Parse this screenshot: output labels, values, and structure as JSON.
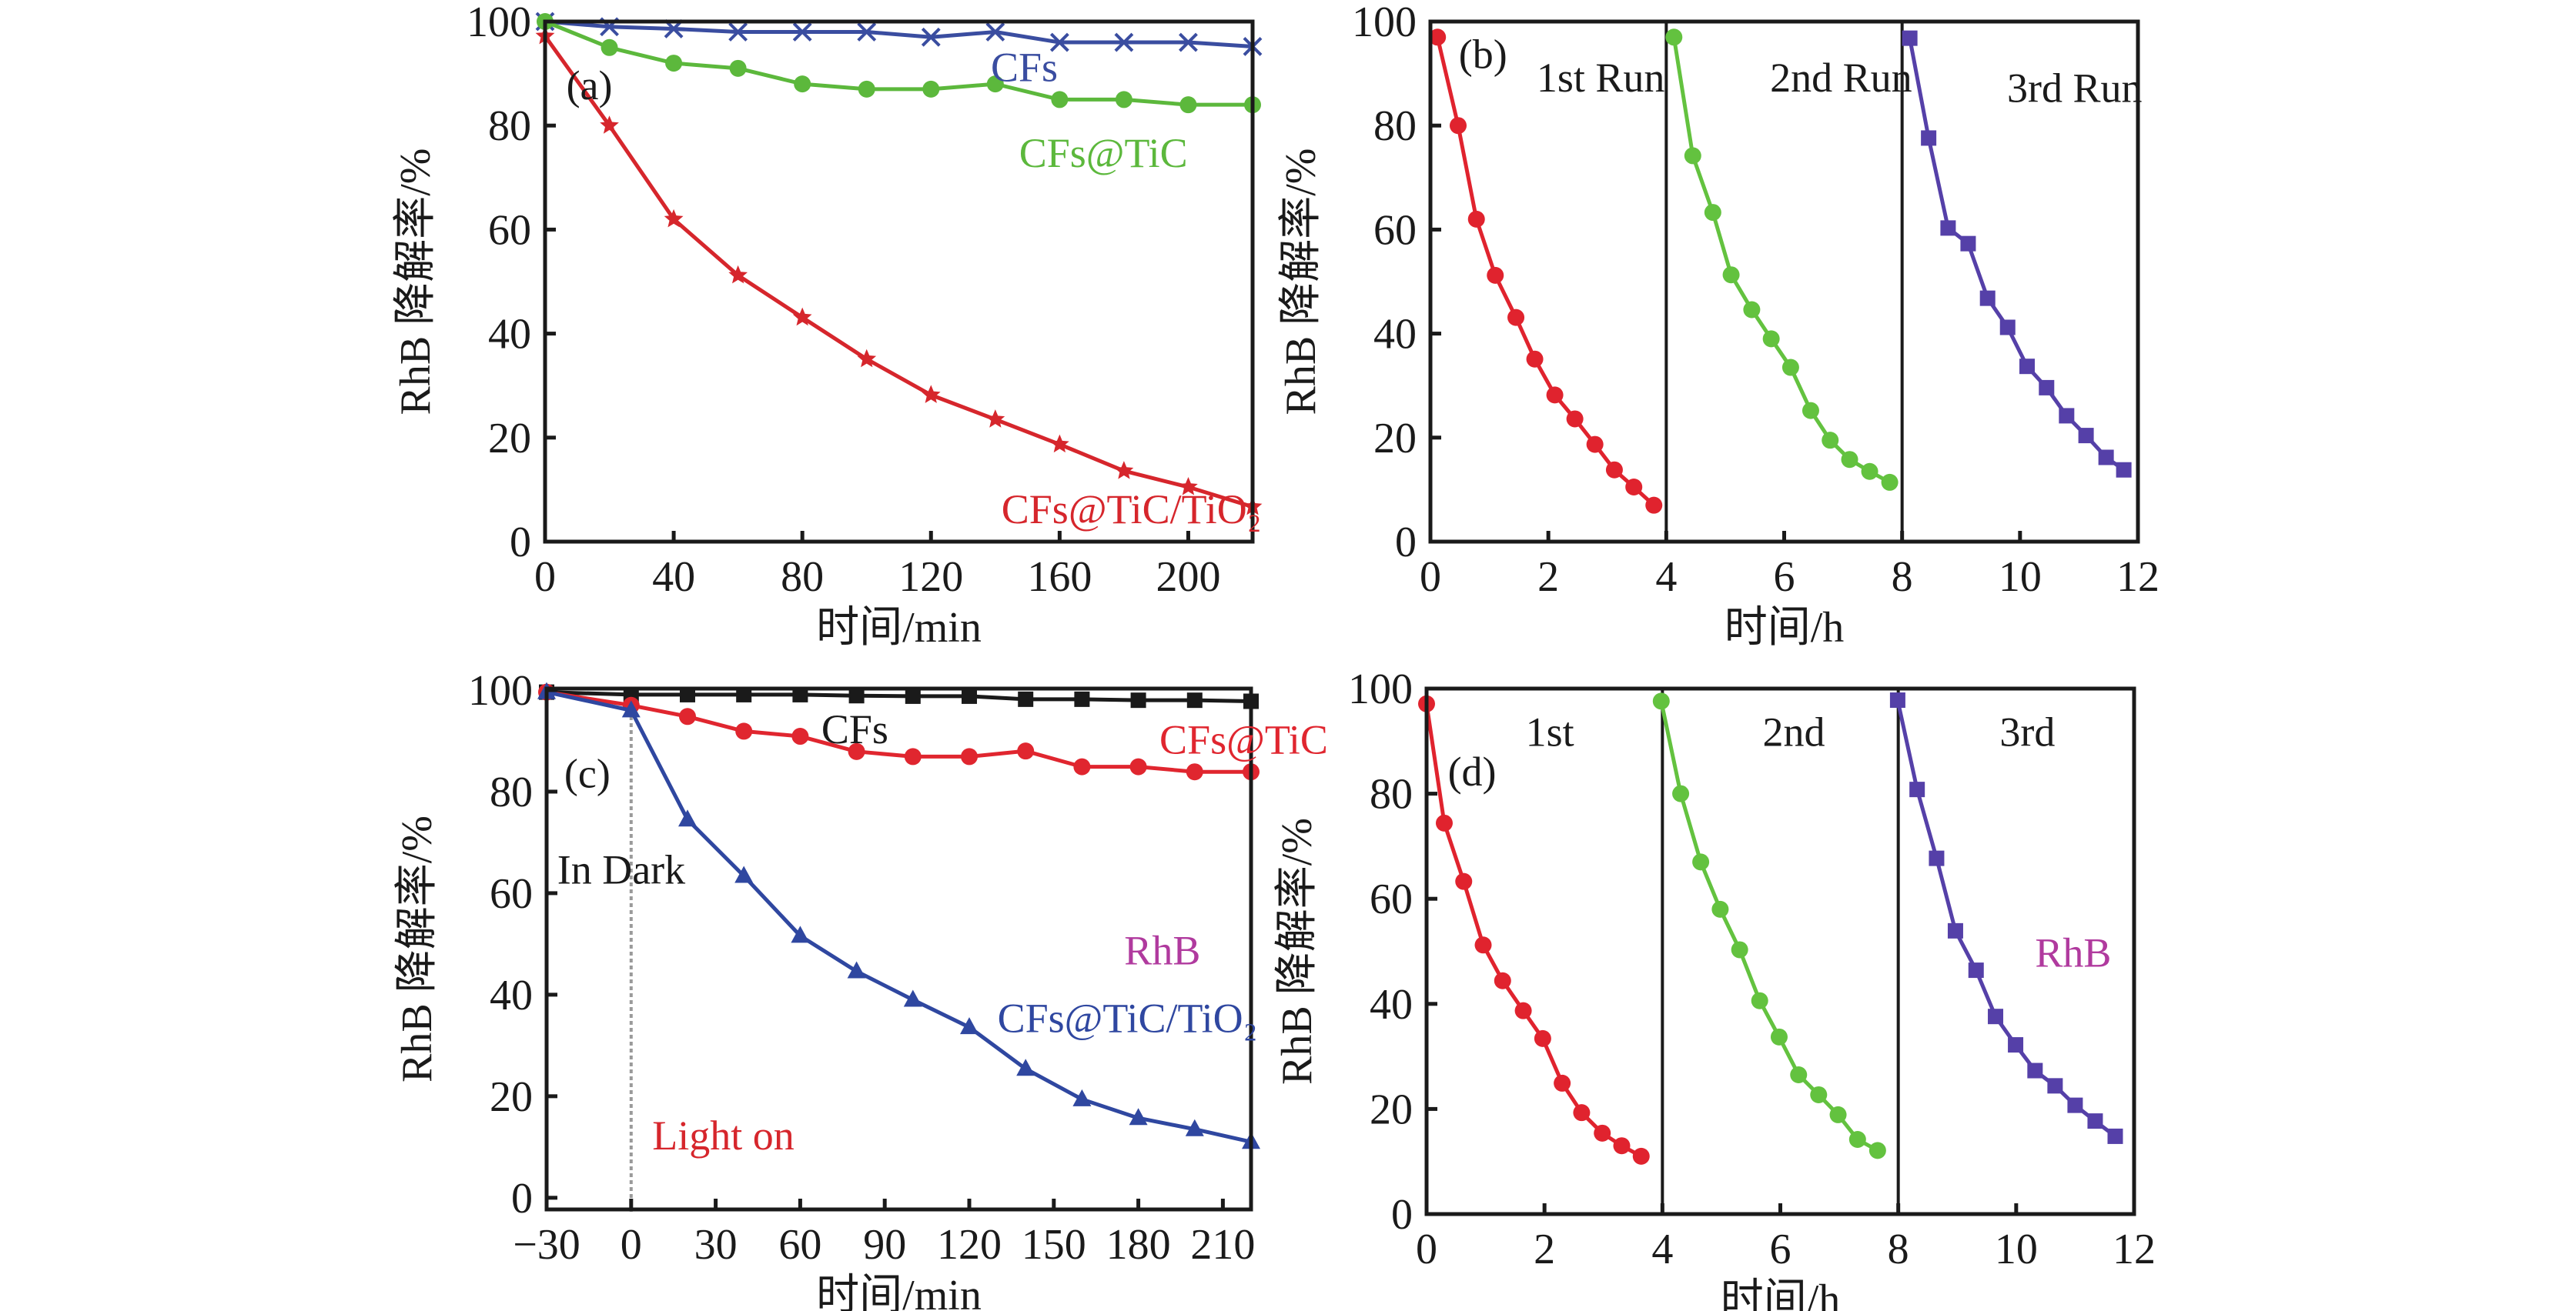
{
  "figure": {
    "panels": [
      "a",
      "b",
      "c",
      "d"
    ]
  },
  "chart_data": [
    {
      "id": "a",
      "type": "line",
      "panel_label": "(a)",
      "title": "",
      "xlabel": "时间/min",
      "ylabel": "RhB 降解率/%",
      "xlim": [
        0,
        220
      ],
      "ylim": [
        0,
        100
      ],
      "xticks": [
        0,
        40,
        80,
        120,
        160,
        200
      ],
      "yticks": [
        0,
        20,
        40,
        60,
        80,
        100
      ],
      "grid": false,
      "x": [
        0,
        20,
        40,
        60,
        80,
        100,
        120,
        140,
        160,
        180,
        200,
        220
      ],
      "series": [
        {
          "name": "CFs",
          "color": "#3a4da0",
          "marker": "x",
          "values": [
            100,
            99,
            98.6,
            98,
            98,
            98,
            97,
            98,
            96,
            96,
            96,
            95.2
          ]
        },
        {
          "name": "CFs@TiC",
          "color": "#5cb83c",
          "marker": "circle",
          "values": [
            100,
            95,
            92,
            91,
            88,
            87,
            87,
            88,
            85,
            85,
            84,
            84
          ]
        },
        {
          "name": "CFs@TiC/TiO₂",
          "color": "#d6262c",
          "marker": "star",
          "values": [
            97.2,
            80,
            62,
            51.2,
            43.1,
            35.1,
            28.2,
            23.5,
            18.7,
            13.6,
            10.5,
            6.7
          ]
        }
      ],
      "annotations": [
        "CFs",
        "CFs@TiC",
        "CFs@TiC/TiO₂"
      ]
    },
    {
      "id": "b",
      "type": "line",
      "panel_label": "(b)",
      "title": "",
      "xlabel": "时间/h",
      "ylabel": "RhB 降解率/%",
      "xlim": [
        0,
        12
      ],
      "ylim": [
        0,
        100
      ],
      "xticks": [
        0,
        2,
        4,
        6,
        8,
        10,
        12
      ],
      "yticks": [
        0,
        20,
        40,
        60,
        80,
        100
      ],
      "grid": false,
      "run_dividers": [
        4,
        8
      ],
      "series": [
        {
          "name": "1st Run",
          "color": "#e0232e",
          "marker": "circle",
          "x": [
            0.12,
            0.47,
            0.78,
            1.1,
            1.45,
            1.77,
            2.11,
            2.45,
            2.79,
            3.12,
            3.45,
            3.79
          ],
          "values": [
            97,
            80,
            62,
            51.2,
            43.1,
            35.1,
            28.2,
            23.6,
            18.7,
            13.8,
            10.5,
            7
          ]
        },
        {
          "name": "2nd Run",
          "color": "#63c23f",
          "marker": "circle",
          "x": [
            4.13,
            4.45,
            4.79,
            5.1,
            5.45,
            5.78,
            6.11,
            6.45,
            6.78,
            7.11,
            7.45,
            7.79
          ],
          "values": [
            97,
            74.2,
            63.3,
            51.3,
            44.6,
            39,
            33.5,
            25.2,
            19.5,
            15.8,
            13.5,
            11.4
          ]
        },
        {
          "name": "3rd Run",
          "color": "#5540a8",
          "marker": "square",
          "x": [
            8.13,
            8.45,
            8.78,
            9.12,
            9.45,
            9.79,
            10.12,
            10.45,
            10.79,
            11.12,
            11.46,
            11.76
          ],
          "values": [
            96.8,
            77.6,
            60.3,
            57.3,
            46.8,
            41.2,
            33.7,
            29.6,
            24.2,
            20.4,
            16.2,
            13.8
          ]
        }
      ],
      "annotations": [
        "1st Run",
        "2nd Run",
        "3rd Run"
      ]
    },
    {
      "id": "c",
      "type": "line",
      "panel_label": "(c)",
      "title": "",
      "xlabel": "时间/min",
      "ylabel": "RhB 降解率/%",
      "xlim": [
        -30,
        220
      ],
      "ylim": [
        -2.3,
        100.3
      ],
      "xticks": [
        -30,
        0,
        30,
        60,
        90,
        120,
        150,
        180,
        210
      ],
      "xtick_labels": [
        "−30",
        "0",
        "30",
        "60",
        "90",
        "120",
        "150",
        "180",
        "210"
      ],
      "yticks": [
        0,
        20,
        40,
        60,
        80,
        100
      ],
      "grid": false,
      "light_on_at": 0,
      "x": [
        -30,
        0,
        20,
        40,
        60,
        80,
        100,
        120,
        140,
        160,
        180,
        200,
        220
      ],
      "series": [
        {
          "name": "CFs",
          "color": "#1a1a1a",
          "marker": "square",
          "values": [
            99.6,
            99.1,
            99.1,
            99.1,
            99.1,
            98.9,
            98.8,
            98.8,
            98.2,
            98.2,
            98,
            98,
            97.8
          ]
        },
        {
          "name": "CFs@TiC",
          "color": "#e0262f",
          "marker": "circle",
          "values": [
            99.6,
            97,
            94.8,
            91.9,
            90.9,
            87.9,
            86.9,
            86.9,
            88,
            84.9,
            84.9,
            83.9,
            83.9
          ]
        },
        {
          "name": "CFs@TiC/TiO₂",
          "color": "#2f47a0",
          "marker": "triangle",
          "values": [
            99.6,
            96,
            74.5,
            63.4,
            51.6,
            44.6,
            39,
            33.6,
            25.4,
            19.4,
            15.7,
            13.5,
            11
          ]
        }
      ],
      "annotations": [
        "CFs",
        "CFs@TiC",
        "In Dark",
        "RhB",
        "CFs@TiC/TiO₂",
        "Light on"
      ],
      "annotation_colors": {
        "In Dark": "#1a1a1a",
        "Light on": "#d6262c",
        "RhB": "#b03a9e"
      }
    },
    {
      "id": "d",
      "type": "line",
      "panel_label": "(d)",
      "title": "",
      "xlabel": "时间/h",
      "ylabel": "RhB 降解率/%",
      "xlim": [
        0,
        12
      ],
      "ylim": [
        0,
        100
      ],
      "xticks": [
        0,
        2,
        4,
        6,
        8,
        10,
        12
      ],
      "yticks": [
        0,
        20,
        40,
        60,
        80,
        100
      ],
      "grid": false,
      "run_dividers": [
        4,
        8
      ],
      "series": [
        {
          "name": "1st",
          "color": "#e0232e",
          "marker": "circle",
          "x": [
            0,
            0.3,
            0.63,
            0.96,
            1.29,
            1.64,
            1.97,
            2.3,
            2.63,
            2.98,
            3.31,
            3.64
          ],
          "values": [
            97.1,
            74.4,
            63.3,
            51.2,
            44.4,
            38.7,
            33.4,
            24.9,
            19.3,
            15.4,
            13,
            11
          ]
        },
        {
          "name": "2nd",
          "color": "#63c23f",
          "marker": "circle",
          "x": [
            3.98,
            4.31,
            4.65,
            4.98,
            5.31,
            5.65,
            5.98,
            6.31,
            6.65,
            6.98,
            7.31,
            7.65
          ],
          "values": [
            97.6,
            80,
            67,
            58,
            50.3,
            40.6,
            33.7,
            26.5,
            22.7,
            18.9,
            14.2,
            12.1
          ]
        },
        {
          "name": "3rd",
          "color": "#5540a8",
          "marker": "square",
          "x": [
            7.99,
            8.32,
            8.65,
            8.97,
            9.32,
            9.65,
            9.99,
            10.32,
            10.66,
            11.0,
            11.34,
            11.68
          ],
          "values": [
            97.8,
            80.8,
            67.7,
            53.9,
            46.4,
            37.6,
            32.2,
            27.3,
            24.4,
            20.7,
            17.7,
            14.8
          ]
        }
      ],
      "annotations": [
        "1st",
        "2nd",
        "3rd",
        "RhB"
      ],
      "annotation_colors": {
        "RhB": "#b03a9e"
      }
    }
  ]
}
